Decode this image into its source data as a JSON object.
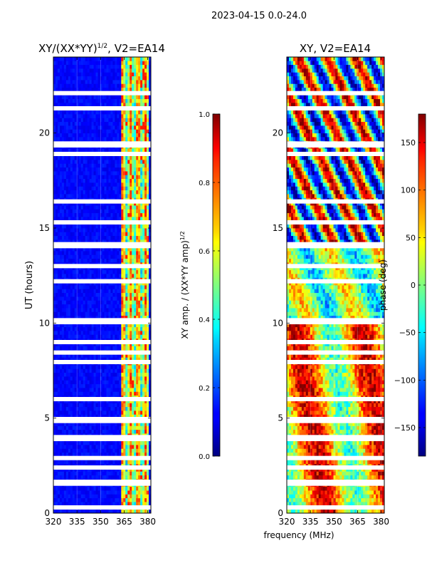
{
  "figure": {
    "suptitle": "2023-04-15 0.0-24.0",
    "xlabel_shared": "frequency (MHz)"
  },
  "chart_data": [
    {
      "type": "heatmap",
      "title_text": "XY/(XX*YY)",
      "title_exponent": "1/2",
      "title_suffix": ", V2=EA14",
      "xlabel": "",
      "ylabel": "UT (hours)",
      "xlim": [
        320,
        382
      ],
      "ylim": [
        0,
        24
      ],
      "xticks": [
        "320",
        "335",
        "350",
        "365",
        "380"
      ],
      "xtick_values": [
        320,
        335,
        350,
        365,
        380
      ],
      "yticks": [
        "0",
        "5",
        "10",
        "15",
        "20"
      ],
      "ytick_values": [
        0,
        5,
        10,
        15,
        20
      ],
      "colorbar": {
        "label_text": "XY amp. / (XX*YY amp)",
        "label_exponent": "1/2",
        "range": [
          0.0,
          1.0
        ],
        "ticks": [
          "0.0",
          "0.2",
          "0.4",
          "0.6",
          "0.8",
          "1.0"
        ],
        "tick_values": [
          0.0,
          0.2,
          0.4,
          0.6,
          0.8,
          1.0
        ]
      },
      "blank_ut_hours": [
        0.3,
        1.55,
        1.65,
        3.9,
        4.0,
        4.85,
        4.95,
        7.95,
        8.45,
        10.05,
        10.15,
        14.05,
        14.15,
        19.35,
        19.45,
        18.9,
        16.4,
        15.3,
        21.3,
        22.1,
        13.0,
        12.2,
        9.0,
        6.0,
        2.4,
        2.9
      ]
    },
    {
      "type": "heatmap",
      "title": "XY, V2=EA14",
      "xlabel": "frequency (MHz)",
      "ylabel": "",
      "xlim": [
        320,
        382
      ],
      "ylim": [
        0,
        24
      ],
      "xticks": [
        "320",
        "335",
        "350",
        "365",
        "380"
      ],
      "xtick_values": [
        320,
        335,
        350,
        365,
        380
      ],
      "yticks": [
        "0",
        "5",
        "10",
        "15",
        "20"
      ],
      "ytick_values": [
        0,
        5,
        10,
        15,
        20
      ],
      "colorbar": {
        "label": "phase (deg)",
        "range": [
          -180,
          180
        ],
        "ticks": [
          "−150",
          "−100",
          "−50",
          "0",
          "50",
          "100",
          "150"
        ],
        "tick_values": [
          -150,
          -100,
          -50,
          0,
          50,
          100,
          150
        ]
      },
      "blank_ut_hours": [
        0.3,
        1.55,
        1.65,
        3.9,
        4.0,
        4.85,
        4.95,
        7.95,
        8.45,
        10.05,
        10.15,
        14.05,
        14.15,
        19.35,
        19.45,
        18.9,
        16.4,
        15.3,
        21.3,
        22.1,
        13.0,
        12.2,
        9.0,
        6.0,
        2.4,
        2.9
      ]
    }
  ]
}
